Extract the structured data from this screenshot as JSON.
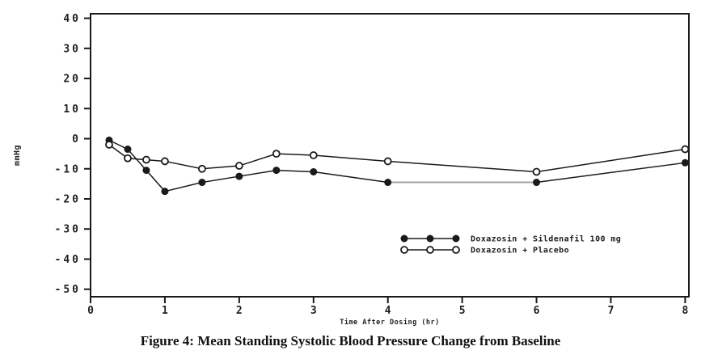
{
  "figure": {
    "caption": "Figure 4: Mean Standing Systolic Blood Pressure Change from Baseline"
  },
  "colors": {
    "ink": "#1a1a1a",
    "faded_line": "#a6a6a6",
    "background": "#ffffff"
  },
  "chart_data": {
    "type": "line",
    "title": "",
    "xlabel": "Time After Dosing (hr)",
    "ylabel": "mmHg",
    "xlim": [
      0,
      8
    ],
    "ylim": [
      -50,
      40
    ],
    "x_ticks": [
      0,
      1,
      2,
      3,
      4,
      5,
      6,
      7,
      8
    ],
    "y_ticks": [
      40,
      30,
      20,
      10,
      0,
      -10,
      -20,
      -30,
      -40,
      -50
    ],
    "grid": false,
    "legend_position": "inside lower-right",
    "x": [
      0.25,
      0.5,
      0.75,
      1,
      1.5,
      2,
      2.5,
      3,
      4,
      6,
      8
    ],
    "series": [
      {
        "name": "Doxazosin + Sildenafil 100 mg",
        "marker": "filled-circle",
        "values": [
          -0.5,
          -3.5,
          -10.5,
          -17.5,
          -14.5,
          -12.5,
          -10.5,
          -11,
          -14.5,
          -14.5,
          -8
        ],
        "faded_segment_x": [
          4,
          6
        ]
      },
      {
        "name": "Doxazosin + Placebo",
        "marker": "open-circle",
        "values": [
          -2,
          -6.5,
          -7,
          -7.5,
          -10,
          -9,
          -5,
          -5.5,
          -7.5,
          -11,
          -3.5
        ]
      }
    ]
  }
}
